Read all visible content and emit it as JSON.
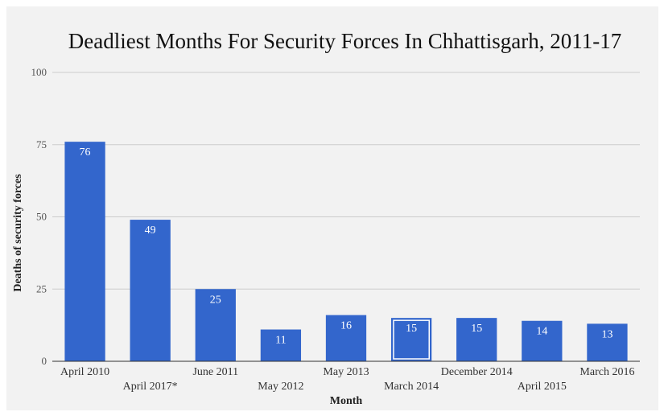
{
  "chart_data": {
    "type": "bar",
    "title": "Deadliest Months For Security Forces In Chhattisgarh, 2011-17",
    "xlabel": "Month",
    "ylabel": "Deaths of security forces",
    "ylim": [
      0,
      100
    ],
    "yticks": [
      "0",
      "25",
      "50",
      "75",
      "100"
    ],
    "categories": [
      "April 2010",
      "April 2017*",
      "June 2011",
      "May 2012",
      "May 2013",
      "March 2014",
      "December 2014",
      "April 2015",
      "March 2016"
    ],
    "values": [
      76,
      49,
      25,
      11,
      16,
      15,
      15,
      14,
      13
    ],
    "value_labels": [
      "76",
      "49",
      "25",
      "11",
      "16",
      "15",
      "15",
      "14",
      "13"
    ],
    "highlighted_category": "March 2014",
    "grid": true,
    "legend": "none",
    "colors": {
      "bar": "#3366cc",
      "grid": "#cccccc",
      "axis": "#333333",
      "background": "#f2f2f2"
    }
  }
}
